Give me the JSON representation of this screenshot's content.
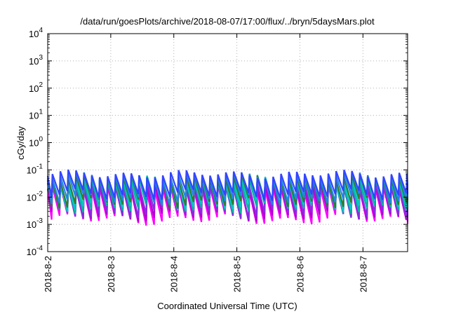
{
  "chart_data": {
    "type": "line",
    "title": "/data/run/goesPlots/archive/2018-08-07/17:00/flux/../bryn/5daysMars.plot",
    "xlabel": "Coordinated Universal Time (UTC)",
    "ylabel": "cGy/day",
    "yscale": "log",
    "ylim": [
      0.0001,
      10000
    ],
    "y_ticks": [
      {
        "base": "10",
        "exp": "-4"
      },
      {
        "base": "10",
        "exp": "-3"
      },
      {
        "base": "10",
        "exp": "-2"
      },
      {
        "base": "10",
        "exp": "-1"
      },
      {
        "base": "10",
        "exp": "0"
      },
      {
        "base": "10",
        "exp": "1"
      },
      {
        "base": "10",
        "exp": "2"
      },
      {
        "base": "10",
        "exp": "3"
      },
      {
        "base": "10",
        "exp": "4"
      }
    ],
    "xlim": [
      "2018-08-02T00:00",
      "2018-08-07T17:00"
    ],
    "x_ticks": [
      "2018-8-2",
      "2018-8-3",
      "2018-8-4",
      "2018-8-5",
      "2018-8-6",
      "2018-8-7"
    ],
    "grid": true,
    "legend": "none",
    "pattern": "sawtooth, ~8 cycles per day",
    "series": [
      {
        "color": "#ff00ff",
        "peak": 0.02,
        "trough": 0.0015
      },
      {
        "color": "#b000d0",
        "peak": 0.025,
        "trough": 0.002
      },
      {
        "color": "#8a2be2",
        "peak": 0.03,
        "trough": 0.0025
      },
      {
        "color": "#00b3a0",
        "peak": 0.04,
        "trough": 0.004
      },
      {
        "color": "#00c8c8",
        "peak": 0.045,
        "trough": 0.005
      },
      {
        "color": "#2e7d32",
        "peak": 0.05,
        "trough": 0.006
      },
      {
        "color": "#1e88e5",
        "peak": 0.06,
        "trough": 0.008
      },
      {
        "color": "#3344ff",
        "peak": 0.07,
        "trough": 0.012
      }
    ]
  }
}
